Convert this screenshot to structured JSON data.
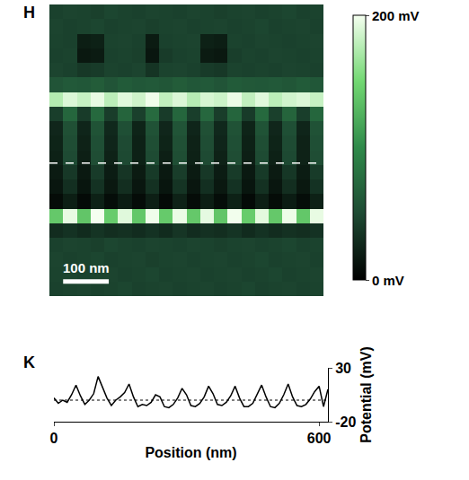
{
  "chart_data": [
    {
      "panel": "H",
      "type": "heatmap",
      "x": [
        15,
        45,
        75,
        105,
        135,
        165,
        195,
        225,
        255,
        285,
        315,
        345,
        375,
        405,
        435,
        465,
        495,
        525,
        555,
        585
      ],
      "y": [
        16,
        48,
        80,
        112,
        144,
        176,
        208,
        240,
        272,
        304,
        336,
        368,
        400,
        432,
        464,
        496,
        528,
        560,
        592,
        624
      ],
      "z": [
        [
          44,
          46,
          45,
          43,
          47,
          45,
          44,
          46,
          45,
          44,
          46,
          45,
          43,
          45,
          46,
          44,
          45,
          47,
          44,
          45
        ],
        [
          46,
          44,
          45,
          47,
          44,
          45,
          46,
          43,
          45,
          46,
          44,
          45,
          46,
          44,
          45,
          47,
          44,
          45,
          46,
          44
        ],
        [
          45,
          44,
          20,
          22,
          45,
          46,
          44,
          18,
          44,
          45,
          46,
          22,
          20,
          45,
          44,
          46,
          45,
          44,
          45,
          46
        ],
        [
          44,
          45,
          16,
          18,
          44,
          45,
          43,
          15,
          40,
          44,
          45,
          18,
          16,
          42,
          45,
          44,
          46,
          45,
          44,
          45
        ],
        [
          46,
          44,
          38,
          40,
          45,
          44,
          46,
          35,
          45,
          46,
          44,
          40,
          38,
          45,
          44,
          45,
          44,
          46,
          45,
          44
        ],
        [
          58,
          62,
          60,
          64,
          58,
          63,
          60,
          62,
          59,
          64,
          60,
          62,
          58,
          63,
          61,
          60,
          62,
          59,
          63,
          60
        ],
        [
          175,
          190,
          182,
          195,
          178,
          192,
          185,
          198,
          180,
          190,
          176,
          188,
          184,
          196,
          180,
          192,
          178,
          186,
          190,
          182
        ],
        [
          42,
          72,
          40,
          74,
          41,
          70,
          43,
          75,
          40,
          72,
          42,
          73,
          41,
          71,
          40,
          74,
          43,
          70,
          42,
          72
        ],
        [
          26,
          55,
          25,
          57,
          27,
          54,
          24,
          56,
          26,
          58,
          25,
          55,
          27,
          56,
          24,
          57,
          26,
          54,
          25,
          56
        ],
        [
          24,
          52,
          23,
          54,
          25,
          50,
          22,
          53,
          24,
          55,
          23,
          52,
          25,
          54,
          22,
          53,
          24,
          51,
          23,
          54
        ],
        [
          22,
          50,
          21,
          52,
          23,
          49,
          22,
          51,
          21,
          53,
          22,
          50,
          23,
          52,
          21,
          51,
          22,
          49,
          23,
          52
        ],
        [
          18,
          38,
          17,
          40,
          19,
          36,
          18,
          39,
          17,
          41,
          18,
          38,
          19,
          40,
          17,
          39,
          18,
          37,
          19,
          40
        ],
        [
          15,
          32,
          14,
          34,
          16,
          31,
          15,
          33,
          14,
          35,
          15,
          32,
          16,
          34,
          14,
          33,
          15,
          31,
          16,
          34
        ],
        [
          8,
          20,
          7,
          22,
          9,
          19,
          8,
          21,
          7,
          23,
          8,
          20,
          9,
          22,
          7,
          21,
          8,
          19,
          9,
          22
        ],
        [
          140,
          195,
          138,
          200,
          142,
          192,
          139,
          198,
          141,
          196,
          140,
          194,
          138,
          199,
          142,
          193,
          140,
          197,
          139,
          195
        ],
        [
          30,
          34,
          29,
          35,
          31,
          33,
          30,
          34,
          29,
          36,
          30,
          33,
          31,
          35,
          29,
          34,
          30,
          33,
          31,
          34
        ],
        [
          44,
          46,
          45,
          43,
          47,
          45,
          44,
          46,
          45,
          44,
          46,
          45,
          43,
          45,
          46,
          44,
          45,
          47,
          44,
          45
        ],
        [
          46,
          44,
          45,
          47,
          44,
          45,
          46,
          43,
          45,
          46,
          44,
          45,
          46,
          44,
          45,
          47,
          44,
          45,
          46,
          44
        ],
        [
          45,
          46,
          44,
          45,
          46,
          44,
          45,
          47,
          44,
          45,
          46,
          44,
          45,
          46,
          44,
          45,
          47,
          44,
          45,
          46
        ],
        [
          44,
          45,
          46,
          44,
          45,
          47,
          44,
          45,
          46,
          44,
          45,
          46,
          44,
          45,
          47,
          44,
          45,
          46,
          44,
          45
        ]
      ],
      "xlim": [
        0,
        600
      ],
      "ylim": [
        640,
        0
      ],
      "tick_labels": false,
      "colorbar": {
        "range": [
          0,
          200
        ],
        "ticks": [
          {
            "value": 0,
            "label": "0 mV"
          },
          {
            "value": 200,
            "label": "200 mV"
          }
        ]
      },
      "scale_bar": {
        "label": "100 nm",
        "length": 100
      },
      "profile_y": 348
    },
    {
      "panel": "K",
      "type": "line",
      "x": [
        0,
        10,
        20,
        30,
        40,
        50,
        60,
        70,
        80,
        90,
        100,
        110,
        120,
        130,
        140,
        150,
        160,
        170,
        180,
        190,
        200,
        210,
        220,
        230,
        240,
        250,
        260,
        270,
        280,
        290,
        300,
        310,
        320,
        330,
        340,
        350,
        360,
        370,
        380,
        390,
        400,
        410,
        420,
        430,
        440,
        450,
        460,
        470,
        480,
        490,
        500,
        510,
        520,
        530,
        540,
        550,
        560,
        570,
        580,
        590,
        600,
        610,
        620
      ],
      "values": [
        2,
        -3,
        0,
        -2,
        5,
        14,
        4,
        -4,
        0,
        6,
        22,
        12,
        2,
        -5,
        0,
        3,
        7,
        15,
        3,
        -6,
        -4,
        -5,
        -2,
        5,
        3,
        -6,
        -7,
        -4,
        2,
        11,
        5,
        -5,
        -6,
        -3,
        3,
        13,
        6,
        -4,
        -5,
        -2,
        4,
        13,
        2,
        -6,
        -6,
        -3,
        6,
        14,
        3,
        -6,
        -7,
        -3,
        5,
        15,
        3,
        -5,
        -6,
        -4,
        1,
        8,
        13,
        -6,
        10
      ],
      "xlim": [
        0,
        620
      ],
      "ylim": [
        -20,
        30
      ],
      "xticks": [
        0,
        600
      ],
      "yticks": [
        -20,
        30
      ],
      "x_label": "Position (nm)",
      "y_label": "Potential (mV)",
      "baseline": 0,
      "color": "#000000"
    }
  ]
}
